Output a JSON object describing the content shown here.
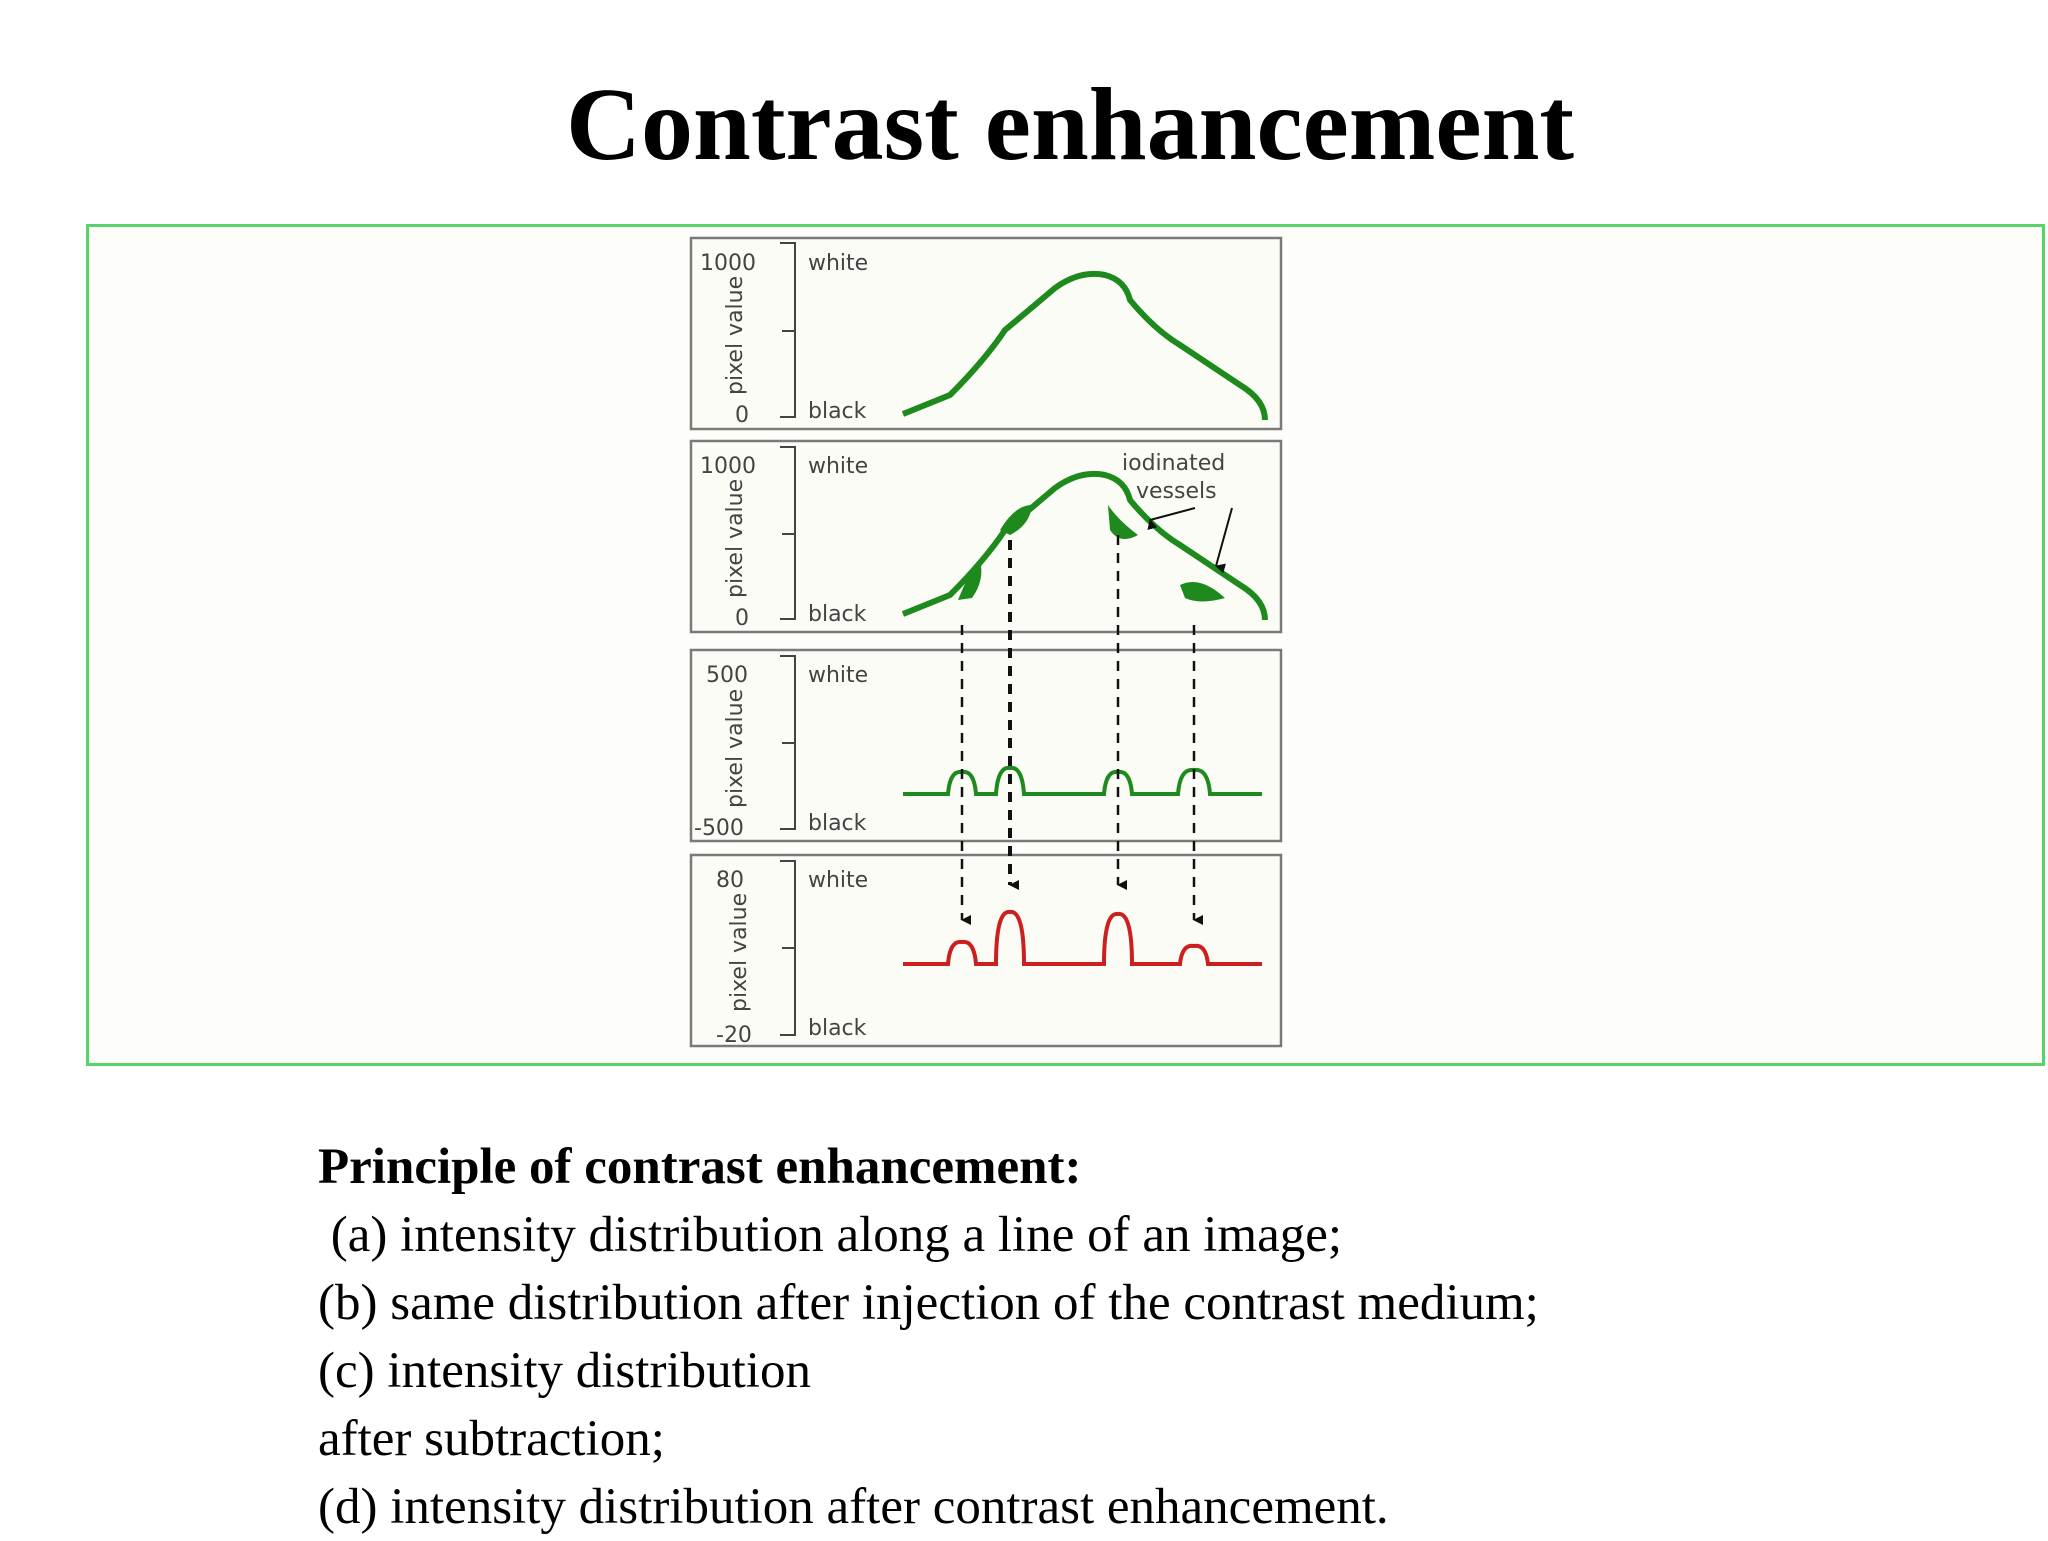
{
  "slide": {
    "title": "Contrast enhancement"
  },
  "colors": {
    "frame_border": "#58d36a",
    "frame_fill": "#fdfdf9",
    "curve_green": "#1e8a1e",
    "curve_red": "#cc1f1f",
    "arrow": "#111111"
  },
  "panels": [
    {
      "ytop": "1000",
      "ybottom": "0",
      "ylabel": "pixel value",
      "white": "white",
      "black": "black"
    },
    {
      "ytop": "1000",
      "ybottom": "0",
      "ylabel": "pixel value",
      "white": "white",
      "black": "black",
      "annotation": [
        "iodinated",
        "vessels"
      ]
    },
    {
      "ytop": "500",
      "ybottom": "-500",
      "ylabel": "pixel value",
      "white": "white",
      "black": "black"
    },
    {
      "ytop": "80",
      "ybottom": "-20",
      "ylabel": "pixel value",
      "white": "white",
      "black": "black"
    }
  ],
  "caption": {
    "heading": "Principle of contrast enhancement:",
    "lines": [
      " (a) intensity distribution along a line of an image;",
      "(b) same distribution after injection of the contrast medium;",
      "(c) intensity distribution",
      "after subtraction;",
      "(d) intensity distribution after contrast enhancement."
    ]
  }
}
